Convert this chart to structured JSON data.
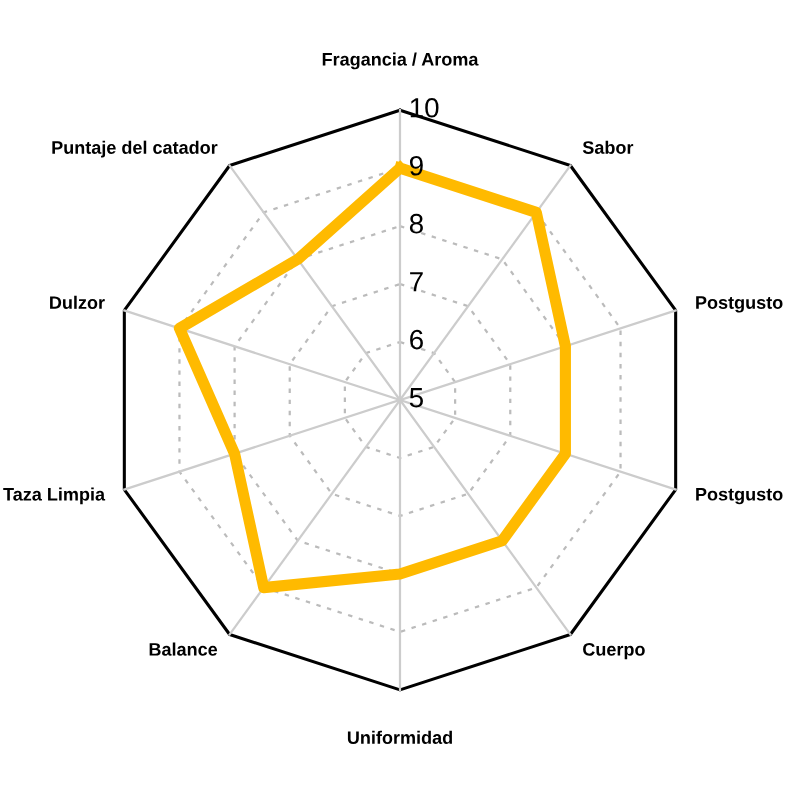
{
  "chart_data": {
    "type": "radar",
    "categories": [
      "Fragancia / Aroma",
      "Sabor",
      "Postgusto",
      "Postgusto",
      "Cuerpo",
      "Uniformidad",
      "Balance",
      "Taza Limpia",
      "Dulzor",
      "Puntaje del catador"
    ],
    "series": [
      {
        "color": "#ffba00",
        "values": [
          9,
          9,
          8,
          8,
          8,
          8,
          9,
          8,
          9,
          8
        ]
      }
    ],
    "ylim": [
      5,
      10
    ],
    "yticks": [
      5,
      6,
      7,
      8,
      9,
      10
    ],
    "grid": true,
    "marker": "none"
  }
}
